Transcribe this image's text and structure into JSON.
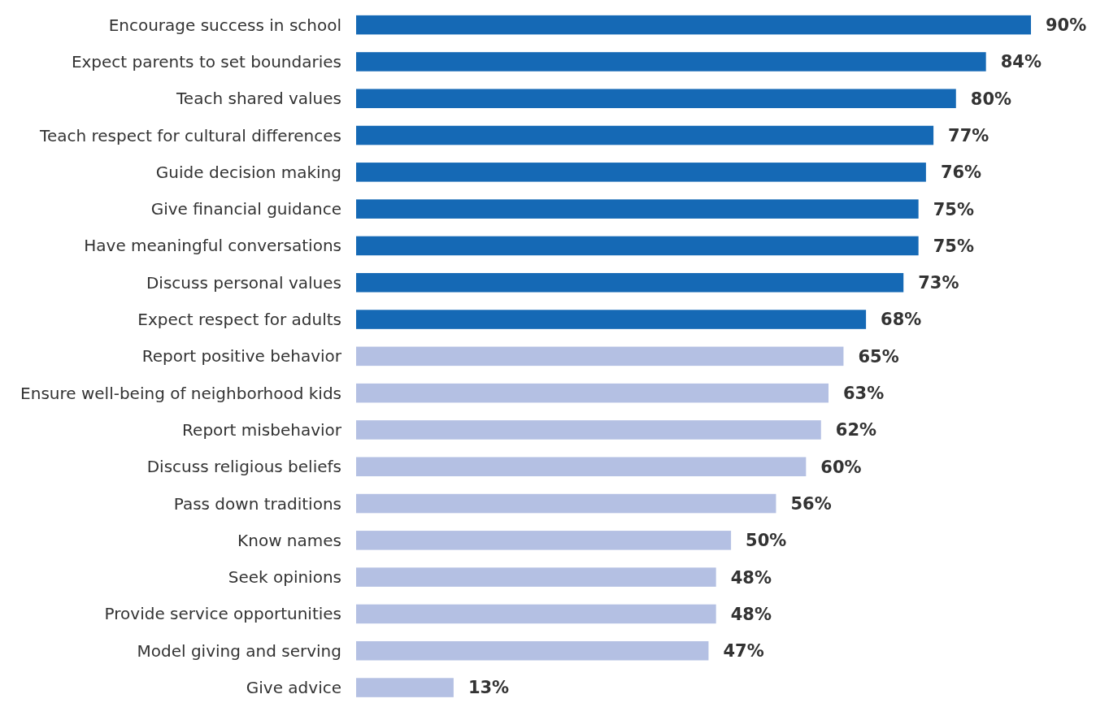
{
  "chart_data": {
    "type": "bar",
    "orientation": "horizontal",
    "categories": [
      "Encourage success in school",
      "Expect parents to set boundaries",
      "Teach shared values",
      "Teach respect for cultural differences",
      "Guide decision making",
      "Give financial guidance",
      "Have meaningful conversations",
      "Discuss personal values",
      "Expect respect for adults",
      "Report positive behavior",
      "Ensure well-being of neighborhood kids",
      "Report misbehavior",
      "Discuss religious beliefs",
      "Pass down traditions",
      "Know names",
      "Seek opinions",
      "Provide service opportunities",
      "Model giving and serving",
      "Give advice"
    ],
    "values": [
      90,
      84,
      80,
      77,
      76,
      75,
      75,
      73,
      68,
      65,
      63,
      62,
      60,
      56,
      50,
      48,
      48,
      47,
      13
    ],
    "value_labels": [
      "90%",
      "84%",
      "80%",
      "77%",
      "76%",
      "75%",
      "75%",
      "73%",
      "68%",
      "65%",
      "63%",
      "62%",
      "60%",
      "56%",
      "50%",
      "48%",
      "48%",
      "47%",
      "13%"
    ],
    "colors": [
      "#1569b5",
      "#1569b5",
      "#1569b5",
      "#1569b5",
      "#1569b5",
      "#1569b5",
      "#1569b5",
      "#1569b5",
      "#1569b5",
      "#b4c0e3",
      "#b4c0e3",
      "#b4c0e3",
      "#b4c0e3",
      "#b4c0e3",
      "#b4c0e3",
      "#b4c0e3",
      "#b4c0e3",
      "#b4c0e3",
      "#b4c0e3"
    ]
  }
}
